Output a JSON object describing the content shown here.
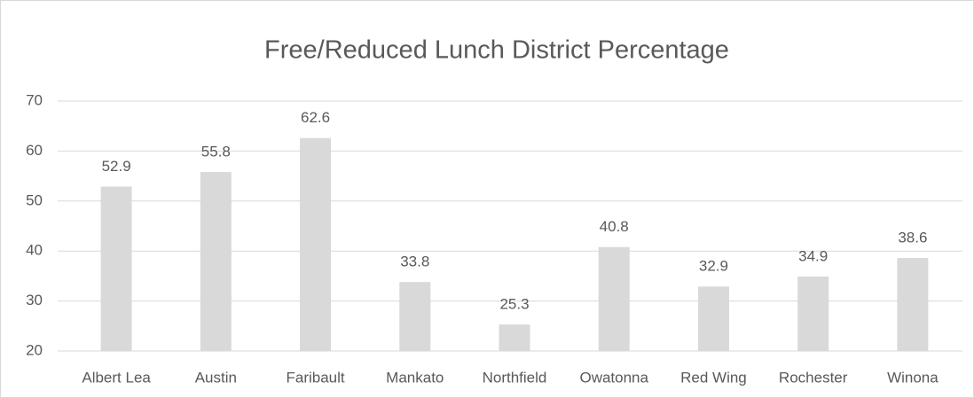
{
  "chart_data": {
    "type": "bar",
    "title": "Free/Reduced Lunch District Percentage",
    "categories": [
      "Albert Lea",
      "Austin",
      "Faribault",
      "Mankato",
      "Northfield",
      "Owatonna",
      "Red Wing",
      "Rochester",
      "Winona"
    ],
    "values": [
      52.9,
      55.8,
      62.6,
      33.8,
      25.3,
      40.8,
      32.9,
      34.9,
      38.6
    ],
    "color": "#d9d9d9",
    "ylim": [
      20,
      70
    ],
    "yticks": [
      20,
      30,
      40,
      50,
      60,
      70
    ],
    "grid": true
  }
}
